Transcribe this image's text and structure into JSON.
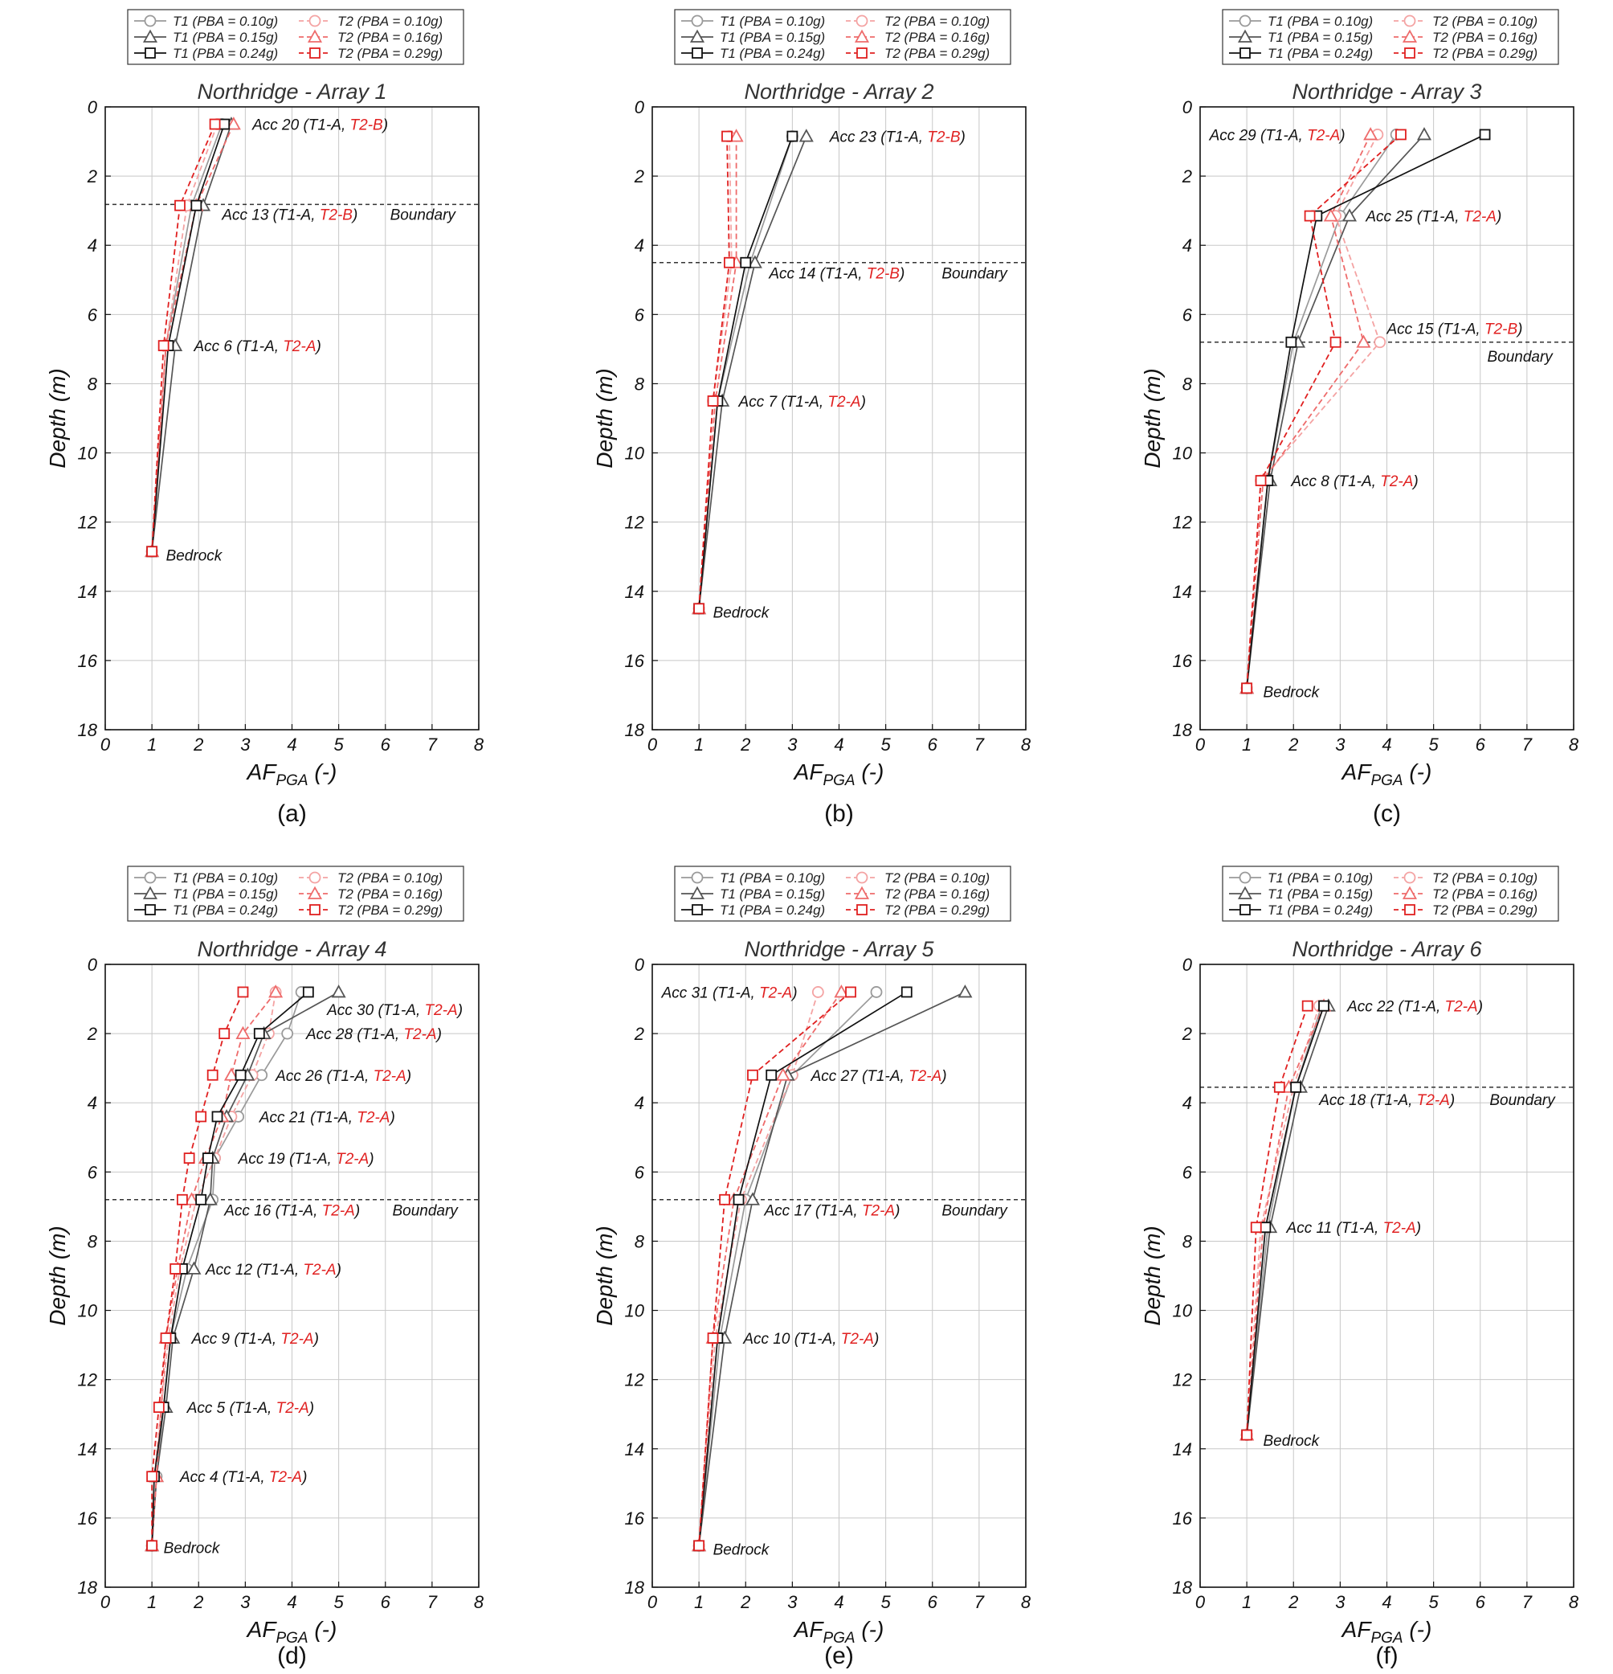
{
  "figure": {
    "subplot_labels": [
      "(a)",
      "(b)",
      "(c)",
      "(d)",
      "(e)",
      "(f)"
    ],
    "legend": [
      {
        "label": "T1 (PBA = 0.10g)",
        "color": "#9a9a9a",
        "marker": "circle",
        "dashed": false
      },
      {
        "label": "T2 (PBA = 0.10g)",
        "color": "#f4a3a3",
        "marker": "circle",
        "dashed": true
      },
      {
        "label": "T1 (PBA = 0.15g)",
        "color": "#555555",
        "marker": "triangle",
        "dashed": false
      },
      {
        "label": "T2 (PBA = 0.16g)",
        "color": "#ee6b6b",
        "marker": "triangle",
        "dashed": true
      },
      {
        "label": "T1 (PBA = 0.24g)",
        "color": "#111111",
        "marker": "square",
        "dashed": false
      },
      {
        "label": "T2 (PBA = 0.29g)",
        "color": "#e02020",
        "marker": "square",
        "dashed": true
      }
    ],
    "boundary_label": "Boundary",
    "bedrock_label": "Bedrock",
    "t1_label": "T1-A",
    "t2_color": "#e02020"
  },
  "chart_data": [
    {
      "type": "line",
      "title": "Northridge - Array 1",
      "xlabel": "AF",
      "xlabel_sub": "PGA",
      "xlabel_unit": " (-)",
      "ylabel": "Depth (m)",
      "xlim": [
        0,
        8
      ],
      "ylim": [
        0,
        18
      ],
      "xticks": [
        0,
        1,
        2,
        3,
        4,
        5,
        6,
        7,
        8
      ],
      "yticks": [
        0,
        2,
        4,
        6,
        8,
        10,
        12,
        14,
        16,
        18
      ],
      "y_inverted": true,
      "grid": true,
      "depths": [
        0.5,
        2.85,
        6.9,
        12.85
      ],
      "series": [
        {
          "name": "T1 (PBA = 0.10g)",
          "values": [
            2.5,
            1.85,
            1.3,
            1.0
          ]
        },
        {
          "name": "T1 (PBA = 0.15g)",
          "values": [
            2.7,
            2.1,
            1.5,
            1.0
          ]
        },
        {
          "name": "T1 (PBA = 0.24g)",
          "values": [
            2.55,
            1.95,
            1.35,
            1.0
          ]
        },
        {
          "name": "T2 (PBA = 0.10g)",
          "values": [
            2.4,
            1.75,
            1.3,
            1.0
          ]
        },
        {
          "name": "T2 (PBA = 0.16g)",
          "values": [
            2.75,
            1.95,
            1.3,
            1.0
          ]
        },
        {
          "name": "T2 (PBA = 0.29g)",
          "values": [
            2.35,
            1.6,
            1.25,
            1.0
          ]
        }
      ],
      "boundary_depth": 2.82,
      "annotations": [
        {
          "acc": "Acc 20 (",
          "t2": "T2-B",
          "x": 3.15,
          "y": 0.5
        },
        {
          "acc": "Acc 13 (",
          "t2": "T2-B",
          "x": 2.5,
          "y": 3.1
        },
        {
          "acc": "Acc 6 (",
          "t2": "T2-A",
          "x": 1.9,
          "y": 6.9
        }
      ],
      "boundary_text_pos": [
        6.1,
        3.1
      ],
      "bedrock_pos": [
        1.3,
        12.95
      ]
    },
    {
      "type": "line",
      "title": "Northridge - Array 2",
      "xlabel": "AF",
      "xlabel_sub": "PGA",
      "xlabel_unit": " (-)",
      "ylabel": "Depth (m)",
      "xlim": [
        0,
        8
      ],
      "ylim": [
        0,
        18
      ],
      "xticks": [
        0,
        1,
        2,
        3,
        4,
        5,
        6,
        7,
        8
      ],
      "yticks": [
        0,
        2,
        4,
        6,
        8,
        10,
        12,
        14,
        16,
        18
      ],
      "y_inverted": true,
      "grid": true,
      "depths": [
        0.85,
        4.5,
        8.5,
        14.5
      ],
      "series": [
        {
          "name": "T1 (PBA = 0.10g)",
          "values": [
            3.0,
            2.1,
            1.4,
            1.0
          ]
        },
        {
          "name": "T1 (PBA = 0.15g)",
          "values": [
            3.3,
            2.2,
            1.5,
            1.0
          ]
        },
        {
          "name": "T1 (PBA = 0.24g)",
          "values": [
            3.0,
            2.0,
            1.4,
            1.0
          ]
        },
        {
          "name": "T2 (PBA = 0.10g)",
          "values": [
            1.65,
            1.7,
            1.3,
            1.0
          ]
        },
        {
          "name": "T2 (PBA = 0.16g)",
          "values": [
            1.8,
            1.8,
            1.35,
            1.0
          ]
        },
        {
          "name": "T2 (PBA = 0.29g)",
          "values": [
            1.6,
            1.65,
            1.3,
            1.0
          ]
        }
      ],
      "boundary_depth": 4.5,
      "annotations": [
        {
          "acc": "Acc 23 (",
          "t2": "T2-B",
          "x": 3.8,
          "y": 0.85
        },
        {
          "acc": "Acc 14 (",
          "t2": "T2-B",
          "x": 2.5,
          "y": 4.8
        },
        {
          "acc": "Acc 7 (",
          "t2": "T2-A",
          "x": 1.85,
          "y": 8.5
        }
      ],
      "boundary_text_pos": [
        6.2,
        4.8
      ],
      "bedrock_pos": [
        1.3,
        14.6
      ]
    },
    {
      "type": "line",
      "title": "Northridge - Array 3",
      "xlabel": "AF",
      "xlabel_sub": "PGA",
      "xlabel_unit": " (-)",
      "ylabel": "Depth (m)",
      "xlim": [
        0,
        8
      ],
      "ylim": [
        0,
        18
      ],
      "xticks": [
        0,
        1,
        2,
        3,
        4,
        5,
        6,
        7,
        8
      ],
      "yticks": [
        0,
        2,
        4,
        6,
        8,
        10,
        12,
        14,
        16,
        18
      ],
      "y_inverted": true,
      "grid": true,
      "depths": [
        0.8,
        3.15,
        6.8,
        10.8,
        16.8
      ],
      "series": [
        {
          "name": "T1 (PBA = 0.10g)",
          "values": [
            4.2,
            3.0,
            2.0,
            1.45,
            1.0
          ]
        },
        {
          "name": "T1 (PBA = 0.15g)",
          "values": [
            4.8,
            3.2,
            2.1,
            1.5,
            1.0
          ]
        },
        {
          "name": "T1 (PBA = 0.24g)",
          "values": [
            6.1,
            2.5,
            1.95,
            1.45,
            1.0
          ]
        },
        {
          "name": "T2 (PBA = 0.10g)",
          "values": [
            3.8,
            2.9,
            3.85,
            1.3,
            1.0
          ]
        },
        {
          "name": "T2 (PBA = 0.16g)",
          "values": [
            3.65,
            2.8,
            3.5,
            1.35,
            1.0
          ]
        },
        {
          "name": "T2 (PBA = 0.29g)",
          "values": [
            4.3,
            2.35,
            2.9,
            1.3,
            1.0
          ]
        }
      ],
      "boundary_depth": 6.8,
      "annotations": [
        {
          "acc": "Acc 29 (",
          "t2": "T2-A",
          "x": 0.2,
          "y": 0.8
        },
        {
          "acc": "Acc 25 (",
          "t2": "T2-A",
          "x": 3.55,
          "y": 3.15
        },
        {
          "acc": "Acc 15 (",
          "t2": "T2-B",
          "x": 4.0,
          "y": 6.4
        },
        {
          "acc": "Acc 8 (",
          "t2": "T2-A",
          "x": 1.95,
          "y": 10.8
        }
      ],
      "boundary_text_pos": [
        6.15,
        7.2
      ],
      "bedrock_pos": [
        1.35,
        16.9
      ]
    },
    {
      "type": "line",
      "title": "Northridge - Array 4",
      "xlabel": "AF",
      "xlabel_sub": "PGA",
      "xlabel_unit": " (-)",
      "ylabel": "Depth (m)",
      "xlim": [
        0,
        8
      ],
      "ylim": [
        0,
        18
      ],
      "xticks": [
        0,
        1,
        2,
        3,
        4,
        5,
        6,
        7,
        8
      ],
      "yticks": [
        0,
        2,
        4,
        6,
        8,
        10,
        12,
        14,
        16,
        18
      ],
      "y_inverted": true,
      "grid": true,
      "depths": [
        0.8,
        2.0,
        3.2,
        4.4,
        5.6,
        6.8,
        8.8,
        10.8,
        12.8,
        14.8,
        16.8
      ],
      "series": [
        {
          "name": "T1 (PBA = 0.10g)",
          "values": [
            4.2,
            3.9,
            3.35,
            2.85,
            2.35,
            2.3,
            1.75,
            1.4,
            1.25,
            1.1,
            1.0
          ]
        },
        {
          "name": "T1 (PBA = 0.15g)",
          "values": [
            5.0,
            3.4,
            3.05,
            2.6,
            2.3,
            2.25,
            1.9,
            1.45,
            1.3,
            1.1,
            1.0
          ]
        },
        {
          "name": "T1 (PBA = 0.24g)",
          "values": [
            4.35,
            3.3,
            2.9,
            2.4,
            2.2,
            2.05,
            1.65,
            1.4,
            1.25,
            1.05,
            1.0
          ]
        },
        {
          "name": "T2 (PBA = 0.10g)",
          "values": [
            3.65,
            3.5,
            3.15,
            2.7,
            2.35,
            1.95,
            1.6,
            1.35,
            1.2,
            1.05,
            1.0
          ]
        },
        {
          "name": "T2 (PBA = 0.16g)",
          "values": [
            3.65,
            2.95,
            2.7,
            2.5,
            2.15,
            1.85,
            1.55,
            1.3,
            1.2,
            1.1,
            1.0
          ]
        },
        {
          "name": "T2 (PBA = 0.29g)",
          "values": [
            2.95,
            2.55,
            2.3,
            2.05,
            1.8,
            1.65,
            1.5,
            1.3,
            1.15,
            1.0,
            1.0
          ]
        }
      ],
      "boundary_depth": 6.8,
      "annotations": [
        {
          "acc": "Acc 30 (",
          "t2": "T2-A",
          "x": 4.75,
          "y": 1.3
        },
        {
          "acc": "Acc 28 (",
          "t2": "T2-A",
          "x": 4.3,
          "y": 2.0
        },
        {
          "acc": "Acc 26 (",
          "t2": "T2-A",
          "x": 3.65,
          "y": 3.2
        },
        {
          "acc": "Acc 21 (",
          "t2": "T2-A",
          "x": 3.3,
          "y": 4.4
        },
        {
          "acc": "Acc 19 (",
          "t2": "T2-A",
          "x": 2.85,
          "y": 5.6
        },
        {
          "acc": "Acc 16 (",
          "t2": "T2-A",
          "x": 2.55,
          "y": 7.1
        },
        {
          "acc": "Acc 12 (",
          "t2": "T2-A",
          "x": 2.15,
          "y": 8.8
        },
        {
          "acc": "Acc 9 (",
          "t2": "T2-A",
          "x": 1.85,
          "y": 10.8
        },
        {
          "acc": "Acc 5 (",
          "t2": "T2-A",
          "x": 1.75,
          "y": 12.8
        },
        {
          "acc": "Acc 4 (",
          "t2": "T2-A",
          "x": 1.6,
          "y": 14.8
        }
      ],
      "boundary_text_pos": [
        6.15,
        7.1
      ],
      "bedrock_pos": [
        1.25,
        16.85
      ]
    },
    {
      "type": "line",
      "title": "Northridge - Array 5",
      "xlabel": "AF",
      "xlabel_sub": "PGA",
      "xlabel_unit": " (-)",
      "ylabel": "Depth (m)",
      "xlim": [
        0,
        8
      ],
      "ylim": [
        0,
        18
      ],
      "xticks": [
        0,
        1,
        2,
        3,
        4,
        5,
        6,
        7,
        8
      ],
      "yticks": [
        0,
        2,
        4,
        6,
        8,
        10,
        12,
        14,
        16,
        18
      ],
      "y_inverted": true,
      "grid": true,
      "depths": [
        0.8,
        3.2,
        6.8,
        10.8,
        16.8
      ],
      "series": [
        {
          "name": "T1 (PBA = 0.10g)",
          "values": [
            4.8,
            3.0,
            2.0,
            1.45,
            1.0
          ]
        },
        {
          "name": "T1 (PBA = 0.15g)",
          "values": [
            6.7,
            2.9,
            2.15,
            1.55,
            1.0
          ]
        },
        {
          "name": "T1 (PBA = 0.24g)",
          "values": [
            5.45,
            2.55,
            1.85,
            1.4,
            1.0
          ]
        },
        {
          "name": "T2 (PBA = 0.10g)",
          "values": [
            3.55,
            3.0,
            1.9,
            1.35,
            1.0
          ]
        },
        {
          "name": "T2 (PBA = 0.16g)",
          "values": [
            4.05,
            2.8,
            1.75,
            1.3,
            1.0
          ]
        },
        {
          "name": "T2 (PBA = 0.29g)",
          "values": [
            4.25,
            2.15,
            1.55,
            1.3,
            1.0
          ]
        }
      ],
      "boundary_depth": 6.8,
      "annotations": [
        {
          "acc": "Acc 31 (",
          "t2": "T2-A",
          "x": 0.2,
          "y": 0.8
        },
        {
          "acc": "Acc 27 (",
          "t2": "T2-A",
          "x": 3.4,
          "y": 3.2
        },
        {
          "acc": "Acc 17 (",
          "t2": "T2-A",
          "x": 2.4,
          "y": 7.1
        },
        {
          "acc": "Acc 10 (",
          "t2": "T2-A",
          "x": 1.95,
          "y": 10.8
        }
      ],
      "boundary_text_pos": [
        6.2,
        7.1
      ],
      "bedrock_pos": [
        1.3,
        16.9
      ]
    },
    {
      "type": "line",
      "title": "Northridge - Array 6",
      "xlabel": "AF",
      "xlabel_sub": "PGA",
      "xlabel_unit": " (-)",
      "ylabel": "Depth (m)",
      "xlim": [
        0,
        8
      ],
      "ylim": [
        0,
        18
      ],
      "xticks": [
        0,
        1,
        2,
        3,
        4,
        5,
        6,
        7,
        8
      ],
      "yticks": [
        0,
        2,
        4,
        6,
        8,
        10,
        12,
        14,
        16,
        18
      ],
      "y_inverted": true,
      "grid": true,
      "depths": [
        1.2,
        3.55,
        7.6,
        13.6
      ],
      "series": [
        {
          "name": "T1 (PBA = 0.10g)",
          "values": [
            2.6,
            2.05,
            1.45,
            1.0
          ]
        },
        {
          "name": "T1 (PBA = 0.15g)",
          "values": [
            2.75,
            2.15,
            1.5,
            1.0
          ]
        },
        {
          "name": "T1 (PBA = 0.24g)",
          "values": [
            2.65,
            2.05,
            1.4,
            1.0
          ]
        },
        {
          "name": "T2 (PBA = 0.10g)",
          "values": [
            2.55,
            2.0,
            1.3,
            1.0
          ]
        },
        {
          "name": "T2 (PBA = 0.16g)",
          "values": [
            2.65,
            1.9,
            1.35,
            1.0
          ]
        },
        {
          "name": "T2 (PBA = 0.29g)",
          "values": [
            2.3,
            1.7,
            1.2,
            1.0
          ]
        }
      ],
      "boundary_depth": 3.55,
      "annotations": [
        {
          "acc": "Acc 22 (",
          "t2": "T2-A",
          "x": 3.15,
          "y": 1.2
        },
        {
          "acc": "Acc 18 (",
          "t2": "T2-A",
          "x": 2.55,
          "y": 3.9
        },
        {
          "acc": "Acc 11 (",
          "t2": "T2-A",
          "x": 1.85,
          "y": 7.6
        }
      ],
      "boundary_text_pos": [
        6.2,
        3.9
      ],
      "bedrock_pos": [
        1.35,
        13.75
      ]
    }
  ]
}
